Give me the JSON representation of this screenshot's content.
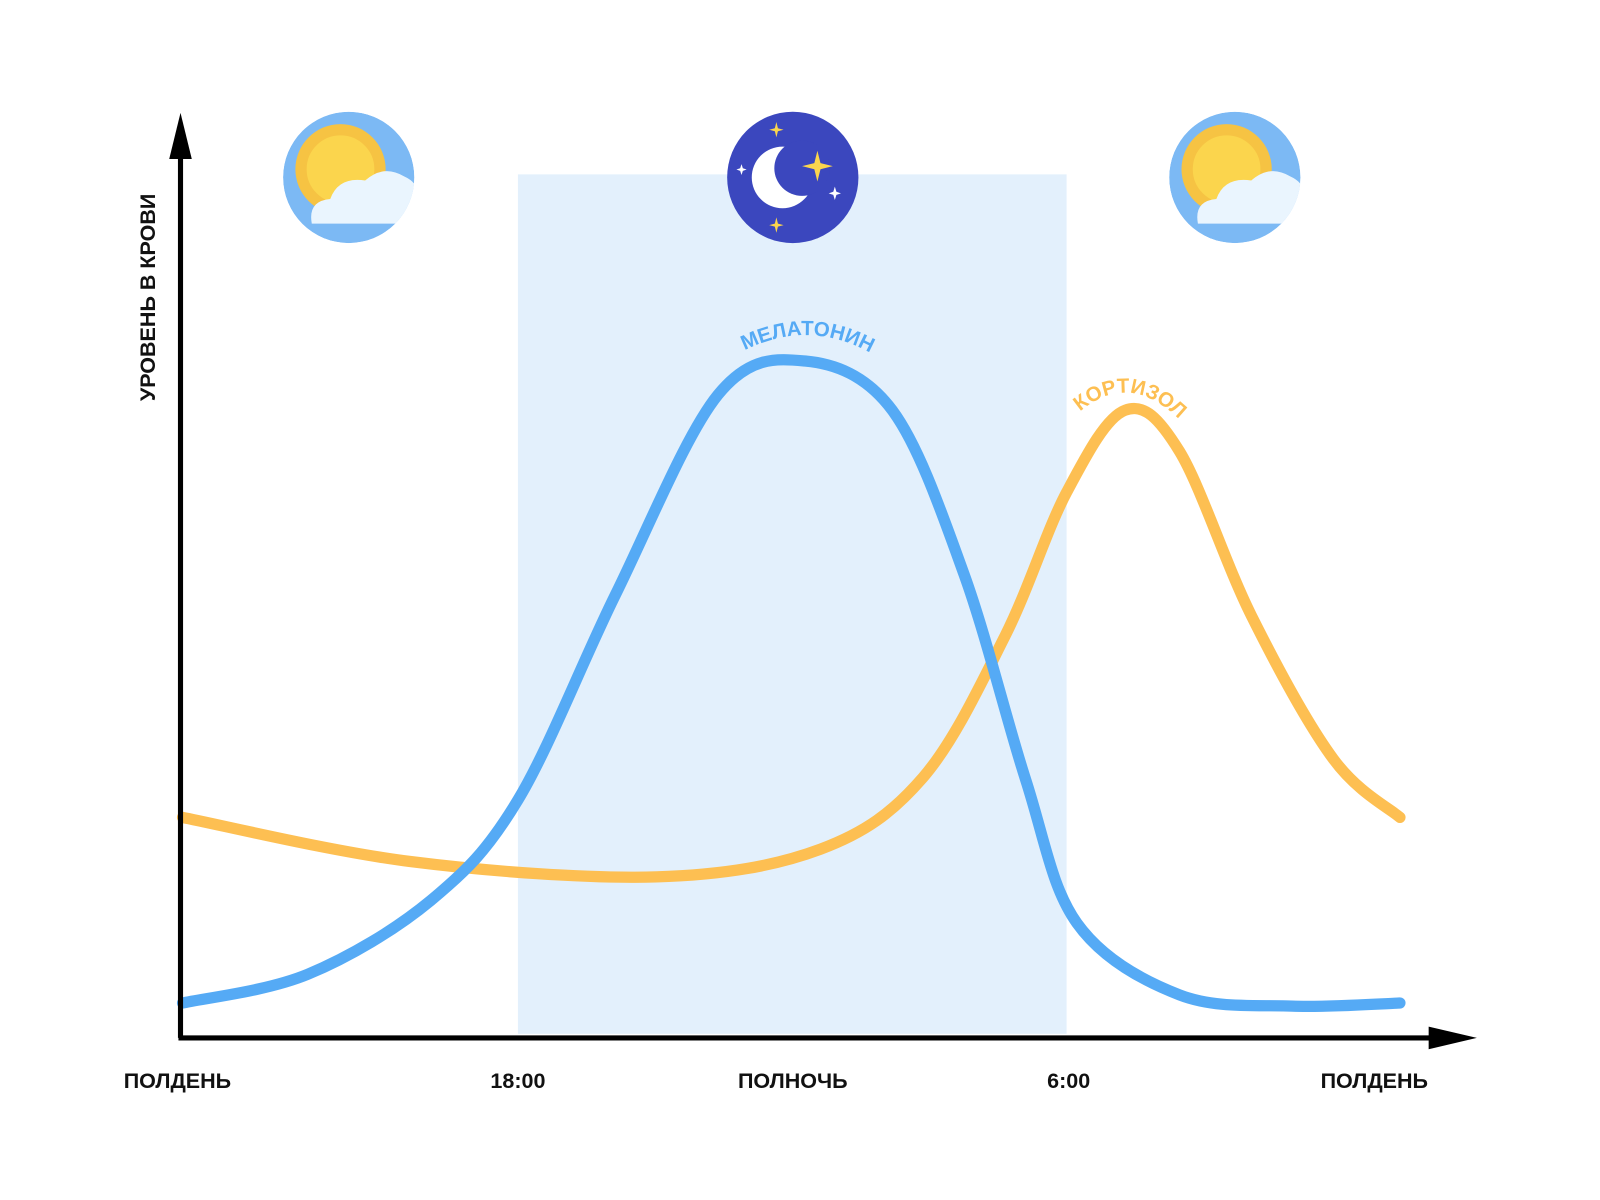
{
  "y_axis_label": "УРОВЕНЬ В КРОВИ",
  "x_labels": [
    "ПОЛДЕНЬ",
    "18:00",
    "ПОЛНОЧЬ",
    "6:00",
    "ПОЛДЕНЬ"
  ],
  "curves": [
    {
      "label": "МЕЛАТОНИН",
      "color": "#55aaf5"
    },
    {
      "label": "КОРТИЗОЛ",
      "color": "#fdbf52"
    }
  ]
}
